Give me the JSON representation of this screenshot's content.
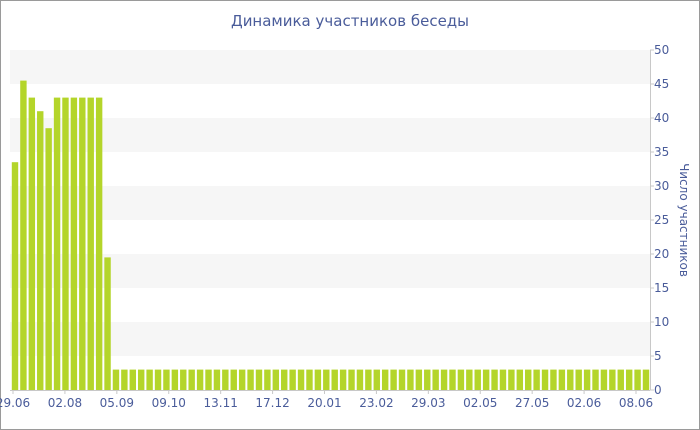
{
  "chart_data": {
    "type": "bar",
    "title": "Динамика участников беседы",
    "xlabel": "",
    "ylabel": "Число участников",
    "ylim": [
      0,
      50
    ],
    "yticks": [
      0,
      5,
      10,
      15,
      20,
      25,
      30,
      35,
      40,
      45,
      50
    ],
    "x_tick_labels": [
      "29.06",
      "02.08",
      "05.09",
      "09.10",
      "13.11",
      "17.12",
      "20.01",
      "23.02",
      "29.03",
      "02.05",
      "27.05",
      "02.06",
      "08.06"
    ],
    "values": [
      33.5,
      45.5,
      43,
      41,
      38.5,
      43,
      43,
      43,
      43,
      43,
      43,
      19.5,
      3,
      3,
      3,
      3,
      3,
      3,
      3,
      3,
      3,
      3,
      3,
      3,
      3,
      3,
      3,
      3,
      3,
      3,
      3,
      3,
      3,
      3,
      3,
      3,
      3,
      3,
      3,
      3,
      3,
      3,
      3,
      3,
      3,
      3,
      3,
      3,
      3,
      3,
      3,
      3,
      3,
      3,
      3,
      3,
      3,
      3,
      3,
      3,
      3,
      3,
      3,
      3,
      3,
      3,
      3,
      3,
      3,
      3,
      3,
      3,
      3,
      3,
      3,
      3
    ],
    "grid": "horizontal alternating bands",
    "y_axis_position": "right",
    "legend": "none",
    "colors": {
      "bar": "#b4d52a",
      "band": "#f6f6f6",
      "text": "#4a5c9a",
      "axis": "#c8c8c8"
    }
  }
}
